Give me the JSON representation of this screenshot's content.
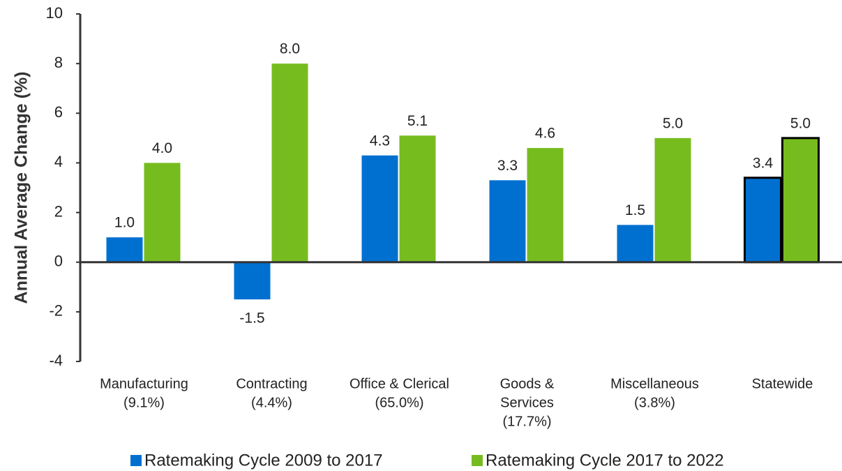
{
  "chart_data": {
    "type": "bar",
    "y_label": "Annual Average Change (%)",
    "categories": [
      [
        "Manufacturing",
        "(9.1%)"
      ],
      [
        "Contracting",
        "(4.4%)"
      ],
      [
        "Office & Clerical",
        "(65.0%)"
      ],
      [
        "Goods &",
        "Services",
        "(17.7%)"
      ],
      [
        "Miscellaneous",
        "(3.8%)"
      ],
      [
        "Statewide"
      ]
    ],
    "series": [
      {
        "name": "Ratemaking Cycle 2009 to 2017",
        "color": "#0070d0",
        "values": [
          1.0,
          -1.5,
          4.3,
          3.3,
          1.5,
          3.4
        ],
        "value_labels": [
          "1.0",
          "-1.5",
          "4.3",
          "3.3",
          "1.5",
          "3.4"
        ]
      },
      {
        "name": "Ratemaking Cycle 2017 to 2022",
        "color": "#77bc1f",
        "values": [
          4.0,
          8.0,
          5.1,
          4.6,
          5.0,
          5.0
        ],
        "value_labels": [
          "4.0",
          "8.0",
          "5.1",
          "4.6",
          "5.0",
          "5.0"
        ]
      }
    ],
    "ylim": [
      -4,
      10
    ],
    "yticks": [
      -4,
      -2,
      0,
      2,
      4,
      6,
      8,
      10
    ],
    "outlined_category": 5,
    "legend": "bottom"
  }
}
